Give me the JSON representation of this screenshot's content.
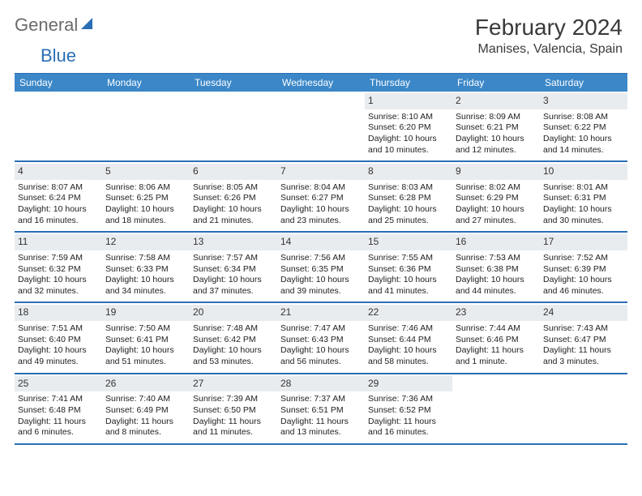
{
  "brand": {
    "part1": "General",
    "part2": "Blue"
  },
  "title": "February 2024",
  "location": "Manises, Valencia, Spain",
  "colors": {
    "header_bg": "#3b87c8",
    "border": "#2a6fb5",
    "daynum_bg": "#e9ecef",
    "text": "#222222",
    "logo_gray": "#6b6b6b"
  },
  "typography": {
    "title_fontsize": 28,
    "location_fontsize": 16,
    "dow_fontsize": 12,
    "cell_fontsize": 10.5
  },
  "dow": [
    "Sunday",
    "Monday",
    "Tuesday",
    "Wednesday",
    "Thursday",
    "Friday",
    "Saturday"
  ],
  "weeks": [
    [
      {
        "n": "",
        "sr": "",
        "ss": "",
        "dl": ""
      },
      {
        "n": "",
        "sr": "",
        "ss": "",
        "dl": ""
      },
      {
        "n": "",
        "sr": "",
        "ss": "",
        "dl": ""
      },
      {
        "n": "",
        "sr": "",
        "ss": "",
        "dl": ""
      },
      {
        "n": "1",
        "sr": "Sunrise: 8:10 AM",
        "ss": "Sunset: 6:20 PM",
        "dl": "Daylight: 10 hours and 10 minutes."
      },
      {
        "n": "2",
        "sr": "Sunrise: 8:09 AM",
        "ss": "Sunset: 6:21 PM",
        "dl": "Daylight: 10 hours and 12 minutes."
      },
      {
        "n": "3",
        "sr": "Sunrise: 8:08 AM",
        "ss": "Sunset: 6:22 PM",
        "dl": "Daylight: 10 hours and 14 minutes."
      }
    ],
    [
      {
        "n": "4",
        "sr": "Sunrise: 8:07 AM",
        "ss": "Sunset: 6:24 PM",
        "dl": "Daylight: 10 hours and 16 minutes."
      },
      {
        "n": "5",
        "sr": "Sunrise: 8:06 AM",
        "ss": "Sunset: 6:25 PM",
        "dl": "Daylight: 10 hours and 18 minutes."
      },
      {
        "n": "6",
        "sr": "Sunrise: 8:05 AM",
        "ss": "Sunset: 6:26 PM",
        "dl": "Daylight: 10 hours and 21 minutes."
      },
      {
        "n": "7",
        "sr": "Sunrise: 8:04 AM",
        "ss": "Sunset: 6:27 PM",
        "dl": "Daylight: 10 hours and 23 minutes."
      },
      {
        "n": "8",
        "sr": "Sunrise: 8:03 AM",
        "ss": "Sunset: 6:28 PM",
        "dl": "Daylight: 10 hours and 25 minutes."
      },
      {
        "n": "9",
        "sr": "Sunrise: 8:02 AM",
        "ss": "Sunset: 6:29 PM",
        "dl": "Daylight: 10 hours and 27 minutes."
      },
      {
        "n": "10",
        "sr": "Sunrise: 8:01 AM",
        "ss": "Sunset: 6:31 PM",
        "dl": "Daylight: 10 hours and 30 minutes."
      }
    ],
    [
      {
        "n": "11",
        "sr": "Sunrise: 7:59 AM",
        "ss": "Sunset: 6:32 PM",
        "dl": "Daylight: 10 hours and 32 minutes."
      },
      {
        "n": "12",
        "sr": "Sunrise: 7:58 AM",
        "ss": "Sunset: 6:33 PM",
        "dl": "Daylight: 10 hours and 34 minutes."
      },
      {
        "n": "13",
        "sr": "Sunrise: 7:57 AM",
        "ss": "Sunset: 6:34 PM",
        "dl": "Daylight: 10 hours and 37 minutes."
      },
      {
        "n": "14",
        "sr": "Sunrise: 7:56 AM",
        "ss": "Sunset: 6:35 PM",
        "dl": "Daylight: 10 hours and 39 minutes."
      },
      {
        "n": "15",
        "sr": "Sunrise: 7:55 AM",
        "ss": "Sunset: 6:36 PM",
        "dl": "Daylight: 10 hours and 41 minutes."
      },
      {
        "n": "16",
        "sr": "Sunrise: 7:53 AM",
        "ss": "Sunset: 6:38 PM",
        "dl": "Daylight: 10 hours and 44 minutes."
      },
      {
        "n": "17",
        "sr": "Sunrise: 7:52 AM",
        "ss": "Sunset: 6:39 PM",
        "dl": "Daylight: 10 hours and 46 minutes."
      }
    ],
    [
      {
        "n": "18",
        "sr": "Sunrise: 7:51 AM",
        "ss": "Sunset: 6:40 PM",
        "dl": "Daylight: 10 hours and 49 minutes."
      },
      {
        "n": "19",
        "sr": "Sunrise: 7:50 AM",
        "ss": "Sunset: 6:41 PM",
        "dl": "Daylight: 10 hours and 51 minutes."
      },
      {
        "n": "20",
        "sr": "Sunrise: 7:48 AM",
        "ss": "Sunset: 6:42 PM",
        "dl": "Daylight: 10 hours and 53 minutes."
      },
      {
        "n": "21",
        "sr": "Sunrise: 7:47 AM",
        "ss": "Sunset: 6:43 PM",
        "dl": "Daylight: 10 hours and 56 minutes."
      },
      {
        "n": "22",
        "sr": "Sunrise: 7:46 AM",
        "ss": "Sunset: 6:44 PM",
        "dl": "Daylight: 10 hours and 58 minutes."
      },
      {
        "n": "23",
        "sr": "Sunrise: 7:44 AM",
        "ss": "Sunset: 6:46 PM",
        "dl": "Daylight: 11 hours and 1 minute."
      },
      {
        "n": "24",
        "sr": "Sunrise: 7:43 AM",
        "ss": "Sunset: 6:47 PM",
        "dl": "Daylight: 11 hours and 3 minutes."
      }
    ],
    [
      {
        "n": "25",
        "sr": "Sunrise: 7:41 AM",
        "ss": "Sunset: 6:48 PM",
        "dl": "Daylight: 11 hours and 6 minutes."
      },
      {
        "n": "26",
        "sr": "Sunrise: 7:40 AM",
        "ss": "Sunset: 6:49 PM",
        "dl": "Daylight: 11 hours and 8 minutes."
      },
      {
        "n": "27",
        "sr": "Sunrise: 7:39 AM",
        "ss": "Sunset: 6:50 PM",
        "dl": "Daylight: 11 hours and 11 minutes."
      },
      {
        "n": "28",
        "sr": "Sunrise: 7:37 AM",
        "ss": "Sunset: 6:51 PM",
        "dl": "Daylight: 11 hours and 13 minutes."
      },
      {
        "n": "29",
        "sr": "Sunrise: 7:36 AM",
        "ss": "Sunset: 6:52 PM",
        "dl": "Daylight: 11 hours and 16 minutes."
      },
      {
        "n": "",
        "sr": "",
        "ss": "",
        "dl": ""
      },
      {
        "n": "",
        "sr": "",
        "ss": "",
        "dl": ""
      }
    ]
  ]
}
